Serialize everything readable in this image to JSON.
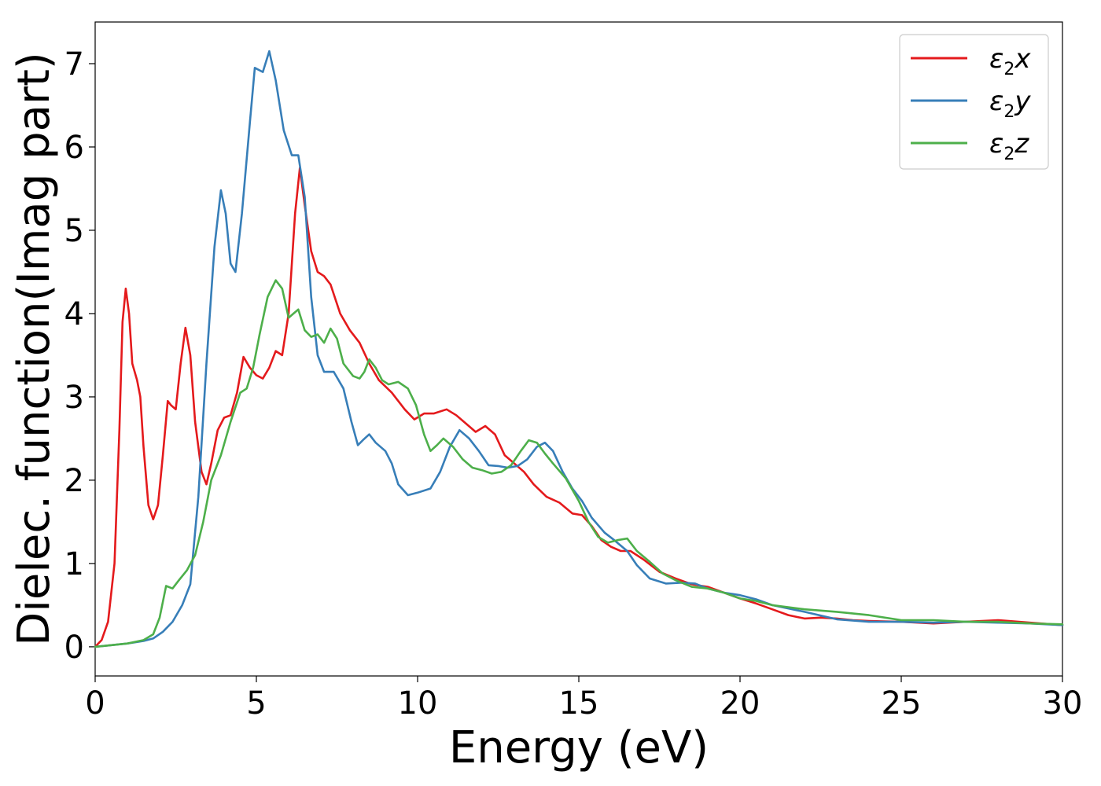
{
  "chart_data": {
    "type": "line",
    "xlabel": "Energy (eV)",
    "ylabel": "Dielec. function(Imag part)",
    "xlim": [
      0,
      30
    ],
    "ylim": [
      -0.35,
      7.5
    ],
    "xticks": [
      0,
      5,
      10,
      15,
      20,
      25,
      30
    ],
    "yticks": [
      0,
      1,
      2,
      3,
      4,
      5,
      6,
      7
    ],
    "grid": false,
    "legend_position": "top-right",
    "series": [
      {
        "name": "ε2x",
        "legend": {
          "base": "ε",
          "sub": "2",
          "var": "x"
        },
        "color": "#e41a1c",
        "points": [
          [
            0,
            0
          ],
          [
            0.2,
            0.08
          ],
          [
            0.4,
            0.3
          ],
          [
            0.6,
            1.0
          ],
          [
            0.75,
            2.6
          ],
          [
            0.85,
            3.9
          ],
          [
            0.95,
            4.3
          ],
          [
            1.05,
            4.0
          ],
          [
            1.15,
            3.4
          ],
          [
            1.3,
            3.2
          ],
          [
            1.4,
            3.0
          ],
          [
            1.5,
            2.4
          ],
          [
            1.65,
            1.7
          ],
          [
            1.8,
            1.53
          ],
          [
            1.95,
            1.7
          ],
          [
            2.1,
            2.3
          ],
          [
            2.25,
            2.95
          ],
          [
            2.35,
            2.9
          ],
          [
            2.5,
            2.85
          ],
          [
            2.65,
            3.4
          ],
          [
            2.8,
            3.83
          ],
          [
            2.95,
            3.5
          ],
          [
            3.1,
            2.7
          ],
          [
            3.3,
            2.1
          ],
          [
            3.45,
            1.95
          ],
          [
            3.6,
            2.2
          ],
          [
            3.8,
            2.6
          ],
          [
            4.0,
            2.75
          ],
          [
            4.2,
            2.78
          ],
          [
            4.4,
            3.05
          ],
          [
            4.6,
            3.48
          ],
          [
            4.8,
            3.35
          ],
          [
            5.0,
            3.26
          ],
          [
            5.2,
            3.22
          ],
          [
            5.4,
            3.35
          ],
          [
            5.6,
            3.55
          ],
          [
            5.8,
            3.5
          ],
          [
            6.0,
            4.0
          ],
          [
            6.2,
            5.2
          ],
          [
            6.35,
            5.75
          ],
          [
            6.5,
            5.3
          ],
          [
            6.7,
            4.75
          ],
          [
            6.9,
            4.5
          ],
          [
            7.1,
            4.45
          ],
          [
            7.3,
            4.35
          ],
          [
            7.6,
            4.0
          ],
          [
            7.9,
            3.8
          ],
          [
            8.2,
            3.65
          ],
          [
            8.5,
            3.4
          ],
          [
            8.8,
            3.2
          ],
          [
            9.2,
            3.05
          ],
          [
            9.6,
            2.85
          ],
          [
            9.9,
            2.73
          ],
          [
            10.2,
            2.8
          ],
          [
            10.5,
            2.8
          ],
          [
            10.9,
            2.85
          ],
          [
            11.2,
            2.78
          ],
          [
            11.5,
            2.68
          ],
          [
            11.8,
            2.58
          ],
          [
            12.1,
            2.65
          ],
          [
            12.4,
            2.55
          ],
          [
            12.7,
            2.3
          ],
          [
            13.0,
            2.2
          ],
          [
            13.3,
            2.1
          ],
          [
            13.6,
            1.95
          ],
          [
            14.0,
            1.8
          ],
          [
            14.4,
            1.73
          ],
          [
            14.8,
            1.6
          ],
          [
            15.1,
            1.58
          ],
          [
            15.4,
            1.45
          ],
          [
            15.7,
            1.28
          ],
          [
            16.0,
            1.2
          ],
          [
            16.3,
            1.15
          ],
          [
            16.6,
            1.15
          ],
          [
            17.0,
            1.05
          ],
          [
            17.5,
            0.9
          ],
          [
            18.0,
            0.82
          ],
          [
            18.5,
            0.75
          ],
          [
            19.0,
            0.72
          ],
          [
            19.5,
            0.65
          ],
          [
            20.0,
            0.58
          ],
          [
            20.5,
            0.52
          ],
          [
            21.0,
            0.45
          ],
          [
            21.5,
            0.38
          ],
          [
            22.0,
            0.34
          ],
          [
            22.5,
            0.35
          ],
          [
            23.0,
            0.34
          ],
          [
            23.5,
            0.32
          ],
          [
            24.0,
            0.31
          ],
          [
            25.0,
            0.3
          ],
          [
            26.0,
            0.28
          ],
          [
            27.0,
            0.3
          ],
          [
            28.0,
            0.32
          ],
          [
            29.0,
            0.29
          ],
          [
            30.0,
            0.26
          ]
        ]
      },
      {
        "name": "ε2y",
        "legend": {
          "base": "ε",
          "sub": "2",
          "var": "y"
        },
        "color": "#377eb8",
        "points": [
          [
            0,
            0
          ],
          [
            0.5,
            0.02
          ],
          [
            1.0,
            0.04
          ],
          [
            1.5,
            0.07
          ],
          [
            1.8,
            0.1
          ],
          [
            2.1,
            0.18
          ],
          [
            2.4,
            0.3
          ],
          [
            2.7,
            0.5
          ],
          [
            2.95,
            0.75
          ],
          [
            3.2,
            1.8
          ],
          [
            3.45,
            3.4
          ],
          [
            3.7,
            4.8
          ],
          [
            3.9,
            5.48
          ],
          [
            4.05,
            5.2
          ],
          [
            4.2,
            4.6
          ],
          [
            4.35,
            4.5
          ],
          [
            4.55,
            5.2
          ],
          [
            4.8,
            6.3
          ],
          [
            4.95,
            6.95
          ],
          [
            5.2,
            6.9
          ],
          [
            5.4,
            7.15
          ],
          [
            5.6,
            6.8
          ],
          [
            5.85,
            6.2
          ],
          [
            6.1,
            5.9
          ],
          [
            6.3,
            5.9
          ],
          [
            6.5,
            5.4
          ],
          [
            6.7,
            4.2
          ],
          [
            6.9,
            3.5
          ],
          [
            7.1,
            3.3
          ],
          [
            7.4,
            3.3
          ],
          [
            7.7,
            3.1
          ],
          [
            7.95,
            2.7
          ],
          [
            8.15,
            2.42
          ],
          [
            8.3,
            2.48
          ],
          [
            8.5,
            2.55
          ],
          [
            8.7,
            2.45
          ],
          [
            9.0,
            2.35
          ],
          [
            9.2,
            2.2
          ],
          [
            9.4,
            1.95
          ],
          [
            9.7,
            1.82
          ],
          [
            10.0,
            1.85
          ],
          [
            10.4,
            1.9
          ],
          [
            10.7,
            2.1
          ],
          [
            11.0,
            2.4
          ],
          [
            11.3,
            2.6
          ],
          [
            11.6,
            2.5
          ],
          [
            11.9,
            2.35
          ],
          [
            12.2,
            2.18
          ],
          [
            12.5,
            2.17
          ],
          [
            12.8,
            2.15
          ],
          [
            13.1,
            2.17
          ],
          [
            13.4,
            2.25
          ],
          [
            13.7,
            2.4
          ],
          [
            13.95,
            2.45
          ],
          [
            14.2,
            2.35
          ],
          [
            14.5,
            2.1
          ],
          [
            14.8,
            1.9
          ],
          [
            15.1,
            1.75
          ],
          [
            15.4,
            1.55
          ],
          [
            15.8,
            1.37
          ],
          [
            16.1,
            1.28
          ],
          [
            16.5,
            1.15
          ],
          [
            16.8,
            0.98
          ],
          [
            17.2,
            0.82
          ],
          [
            17.7,
            0.76
          ],
          [
            18.2,
            0.77
          ],
          [
            18.6,
            0.76
          ],
          [
            19.0,
            0.7
          ],
          [
            19.5,
            0.65
          ],
          [
            20.0,
            0.62
          ],
          [
            20.5,
            0.57
          ],
          [
            21.0,
            0.5
          ],
          [
            22.0,
            0.42
          ],
          [
            23.0,
            0.33
          ],
          [
            24.0,
            0.3
          ],
          [
            25.0,
            0.3
          ],
          [
            26.0,
            0.29
          ],
          [
            27.0,
            0.3
          ],
          [
            28.0,
            0.29
          ],
          [
            29.0,
            0.28
          ],
          [
            30.0,
            0.26
          ]
        ]
      },
      {
        "name": "ε2z",
        "legend": {
          "base": "ε",
          "sub": "2",
          "var": "z"
        },
        "color": "#4daf4a",
        "points": [
          [
            0,
            0
          ],
          [
            0.5,
            0.02
          ],
          [
            1.0,
            0.04
          ],
          [
            1.5,
            0.08
          ],
          [
            1.8,
            0.15
          ],
          [
            2.0,
            0.35
          ],
          [
            2.2,
            0.73
          ],
          [
            2.4,
            0.7
          ],
          [
            2.6,
            0.8
          ],
          [
            2.85,
            0.92
          ],
          [
            3.1,
            1.1
          ],
          [
            3.35,
            1.5
          ],
          [
            3.6,
            2.0
          ],
          [
            3.9,
            2.3
          ],
          [
            4.2,
            2.7
          ],
          [
            4.5,
            3.05
          ],
          [
            4.7,
            3.1
          ],
          [
            4.9,
            3.35
          ],
          [
            5.1,
            3.75
          ],
          [
            5.35,
            4.2
          ],
          [
            5.6,
            4.4
          ],
          [
            5.8,
            4.3
          ],
          [
            6.0,
            3.95
          ],
          [
            6.15,
            4.0
          ],
          [
            6.3,
            4.05
          ],
          [
            6.5,
            3.8
          ],
          [
            6.7,
            3.72
          ],
          [
            6.9,
            3.75
          ],
          [
            7.1,
            3.65
          ],
          [
            7.3,
            3.82
          ],
          [
            7.5,
            3.7
          ],
          [
            7.7,
            3.4
          ],
          [
            8.0,
            3.25
          ],
          [
            8.2,
            3.22
          ],
          [
            8.35,
            3.3
          ],
          [
            8.5,
            3.45
          ],
          [
            8.7,
            3.35
          ],
          [
            8.9,
            3.2
          ],
          [
            9.1,
            3.15
          ],
          [
            9.4,
            3.18
          ],
          [
            9.7,
            3.1
          ],
          [
            9.95,
            2.9
          ],
          [
            10.2,
            2.55
          ],
          [
            10.4,
            2.35
          ],
          [
            10.6,
            2.42
          ],
          [
            10.8,
            2.5
          ],
          [
            11.1,
            2.4
          ],
          [
            11.4,
            2.25
          ],
          [
            11.7,
            2.15
          ],
          [
            12.0,
            2.12
          ],
          [
            12.3,
            2.08
          ],
          [
            12.6,
            2.1
          ],
          [
            12.9,
            2.18
          ],
          [
            13.2,
            2.35
          ],
          [
            13.45,
            2.48
          ],
          [
            13.7,
            2.45
          ],
          [
            13.95,
            2.32
          ],
          [
            14.2,
            2.2
          ],
          [
            14.6,
            2.02
          ],
          [
            15.0,
            1.75
          ],
          [
            15.3,
            1.5
          ],
          [
            15.6,
            1.32
          ],
          [
            15.9,
            1.25
          ],
          [
            16.2,
            1.28
          ],
          [
            16.5,
            1.3
          ],
          [
            16.8,
            1.15
          ],
          [
            17.2,
            1.02
          ],
          [
            17.6,
            0.88
          ],
          [
            18.0,
            0.8
          ],
          [
            18.5,
            0.72
          ],
          [
            19.0,
            0.7
          ],
          [
            19.5,
            0.65
          ],
          [
            20.0,
            0.58
          ],
          [
            20.5,
            0.55
          ],
          [
            21.0,
            0.5
          ],
          [
            22.0,
            0.45
          ],
          [
            23.0,
            0.42
          ],
          [
            24.0,
            0.38
          ],
          [
            25.0,
            0.32
          ],
          [
            26.0,
            0.32
          ],
          [
            27.0,
            0.3
          ],
          [
            28.0,
            0.3
          ],
          [
            29.0,
            0.28
          ],
          [
            30.0,
            0.27
          ]
        ]
      }
    ]
  }
}
